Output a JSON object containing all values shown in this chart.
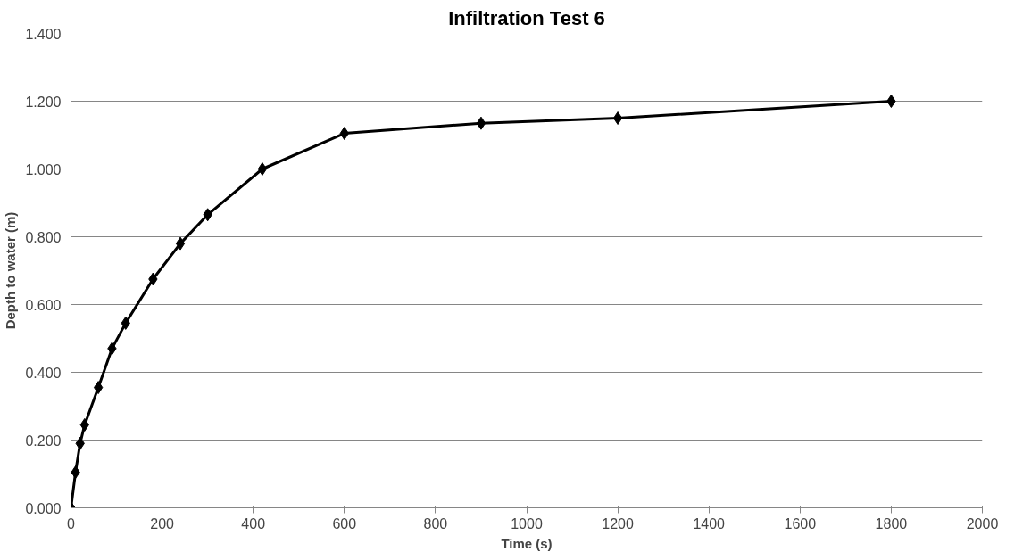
{
  "chart_data": {
    "type": "line",
    "title": "Infiltration Test 6",
    "xlabel": "Time (s)",
    "ylabel": "Depth to water (m)",
    "x": [
      0,
      10,
      20,
      30,
      60,
      90,
      120,
      180,
      240,
      300,
      420,
      600,
      900,
      1200,
      1800
    ],
    "series": [
      {
        "color": "#000000",
        "values": [
          0.0,
          0.105,
          0.19,
          0.245,
          0.355,
          0.47,
          0.545,
          0.675,
          0.78,
          0.865,
          1.0,
          1.105,
          1.135,
          1.15,
          1.2
        ]
      }
    ],
    "xlim": [
      0,
      2000
    ],
    "xticks": [
      0,
      200,
      400,
      600,
      800,
      1000,
      1200,
      1400,
      1600,
      1800,
      2000
    ],
    "ylim": [
      0,
      1.4
    ],
    "yticks": [
      {
        "value": 0,
        "label": "0.000"
      },
      {
        "value": 0.2,
        "label": "0.200"
      },
      {
        "value": 0.4,
        "label": "0.400"
      },
      {
        "value": 0.6,
        "label": "0.600"
      },
      {
        "value": 0.8,
        "label": "0.800"
      },
      {
        "value": 1.0,
        "label": "1.000"
      },
      {
        "value": 1.2,
        "label": "1.200"
      },
      {
        "value": 1.4,
        "label": "1.400"
      }
    ],
    "grid": "y",
    "marker": "diamond",
    "line_style": "solid"
  }
}
